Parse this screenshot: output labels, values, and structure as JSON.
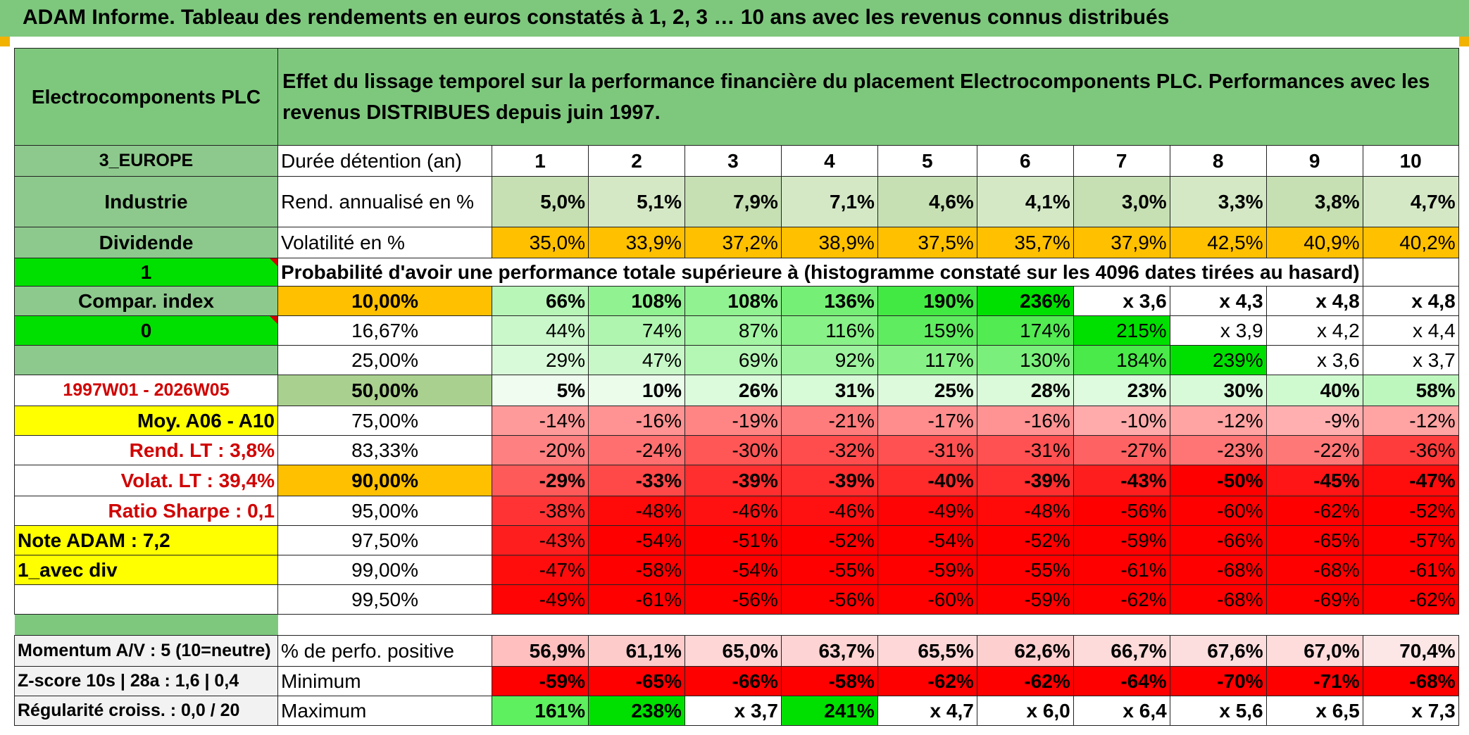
{
  "title": "ADAM Informe. Tableau des rendements en euros constatés à 1, 2, 3 … 10 ans avec les revenus connus distribués",
  "company": "Electrocomponents PLC",
  "header_text": "Effet du lissage temporel sur la performance financière du placement Electrocomponents PLC. Performances avec les revenus DISTRIBUES depuis juin 1997.",
  "colors": {
    "title_green": "#7ec87e",
    "bright_green": "#00e000",
    "orange": "#ffc000",
    "yellow": "#ffff00",
    "deep_red": "#ff0000",
    "label_red": "#d00000"
  },
  "side": {
    "region": "3_EUROPE",
    "sector": "Industrie",
    "dividend": "Dividende",
    "flag1": "1",
    "compar_index": "Compar. index",
    "flag0": "0",
    "period": "1997W01 - 2026W05",
    "moy": "Moy. A06 - A10",
    "rend_lt": "Rend. LT :   3,8%",
    "volat_lt": "Volat. LT :   39,4%",
    "sharpe": "Ratio Sharpe :    0,1",
    "note": "Note ADAM : 7,2",
    "avec_div": "1_avec div",
    "momentum": "Momentum A/V : 5 (10=neutre)",
    "zscore": "Z-score 10s | 28a : 1,6 | 0,4",
    "regularite": "Régularité croiss. : 0,0 / 20"
  },
  "labels": {
    "duree": "Durée détention (an)",
    "rend": "Rend. annualisé en %",
    "vol": "Volatilité en %",
    "prob": "Probabilité d'avoir une performance totale supérieure à (histogramme constaté sur les 4096 dates tirées au hasard)",
    "pos": "% de perfo. positive",
    "min": "Minimum",
    "max": "Maximum"
  },
  "years": [
    "1",
    "2",
    "3",
    "4",
    "5",
    "6",
    "7",
    "8",
    "9",
    "10"
  ],
  "rend": [
    "5,0%",
    "5,1%",
    "7,9%",
    "7,1%",
    "4,6%",
    "4,1%",
    "3,0%",
    "3,3%",
    "3,8%",
    "4,7%"
  ],
  "vol": [
    "35,0%",
    "33,9%",
    "37,2%",
    "38,9%",
    "37,5%",
    "35,7%",
    "37,9%",
    "42,5%",
    "40,9%",
    "40,2%"
  ],
  "prob_rows": [
    {
      "p": "10,00%",
      "v": [
        "66%",
        "108%",
        "108%",
        "136%",
        "190%",
        "236%",
        "x 3,6",
        "x 4,3",
        "x 4,8",
        "x 4,8"
      ]
    },
    {
      "p": "16,67%",
      "v": [
        "44%",
        "74%",
        "87%",
        "116%",
        "159%",
        "174%",
        "215%",
        "x 3,9",
        "x 4,2",
        "x 4,4"
      ]
    },
    {
      "p": "25,00%",
      "v": [
        "29%",
        "47%",
        "69%",
        "92%",
        "117%",
        "130%",
        "184%",
        "239%",
        "x 3,6",
        "x 3,7"
      ]
    },
    {
      "p": "50,00%",
      "v": [
        "5%",
        "10%",
        "26%",
        "31%",
        "25%",
        "28%",
        "23%",
        "30%",
        "40%",
        "58%"
      ]
    },
    {
      "p": "75,00%",
      "v": [
        "-14%",
        "-16%",
        "-19%",
        "-21%",
        "-17%",
        "-16%",
        "-10%",
        "-12%",
        "-9%",
        "-12%"
      ]
    },
    {
      "p": "83,33%",
      "v": [
        "-20%",
        "-24%",
        "-30%",
        "-32%",
        "-31%",
        "-31%",
        "-27%",
        "-23%",
        "-22%",
        "-36%"
      ]
    },
    {
      "p": "90,00%",
      "v": [
        "-29%",
        "-33%",
        "-39%",
        "-39%",
        "-40%",
        "-39%",
        "-43%",
        "-50%",
        "-45%",
        "-47%"
      ]
    },
    {
      "p": "95,00%",
      "v": [
        "-38%",
        "-48%",
        "-46%",
        "-46%",
        "-49%",
        "-48%",
        "-56%",
        "-60%",
        "-62%",
        "-52%"
      ]
    },
    {
      "p": "97,50%",
      "v": [
        "-43%",
        "-54%",
        "-51%",
        "-52%",
        "-54%",
        "-52%",
        "-59%",
        "-66%",
        "-65%",
        "-57%"
      ]
    },
    {
      "p": "99,00%",
      "v": [
        "-47%",
        "-58%",
        "-54%",
        "-55%",
        "-59%",
        "-55%",
        "-61%",
        "-68%",
        "-68%",
        "-61%"
      ]
    },
    {
      "p": "99,50%",
      "v": [
        "-49%",
        "-61%",
        "-56%",
        "-56%",
        "-60%",
        "-59%",
        "-62%",
        "-68%",
        "-69%",
        "-62%"
      ]
    }
  ],
  "pos": [
    "56,9%",
    "61,1%",
    "65,0%",
    "63,7%",
    "65,5%",
    "62,6%",
    "66,7%",
    "67,6%",
    "67,0%",
    "70,4%"
  ],
  "min": [
    "-59%",
    "-65%",
    "-66%",
    "-58%",
    "-62%",
    "-62%",
    "-64%",
    "-70%",
    "-71%",
    "-68%"
  ],
  "max": [
    "161%",
    "238%",
    "x 3,7",
    "241%",
    "x 4,7",
    "x 6,0",
    "x 6,4",
    "x 5,6",
    "x 6,5",
    "x 7,3"
  ]
}
